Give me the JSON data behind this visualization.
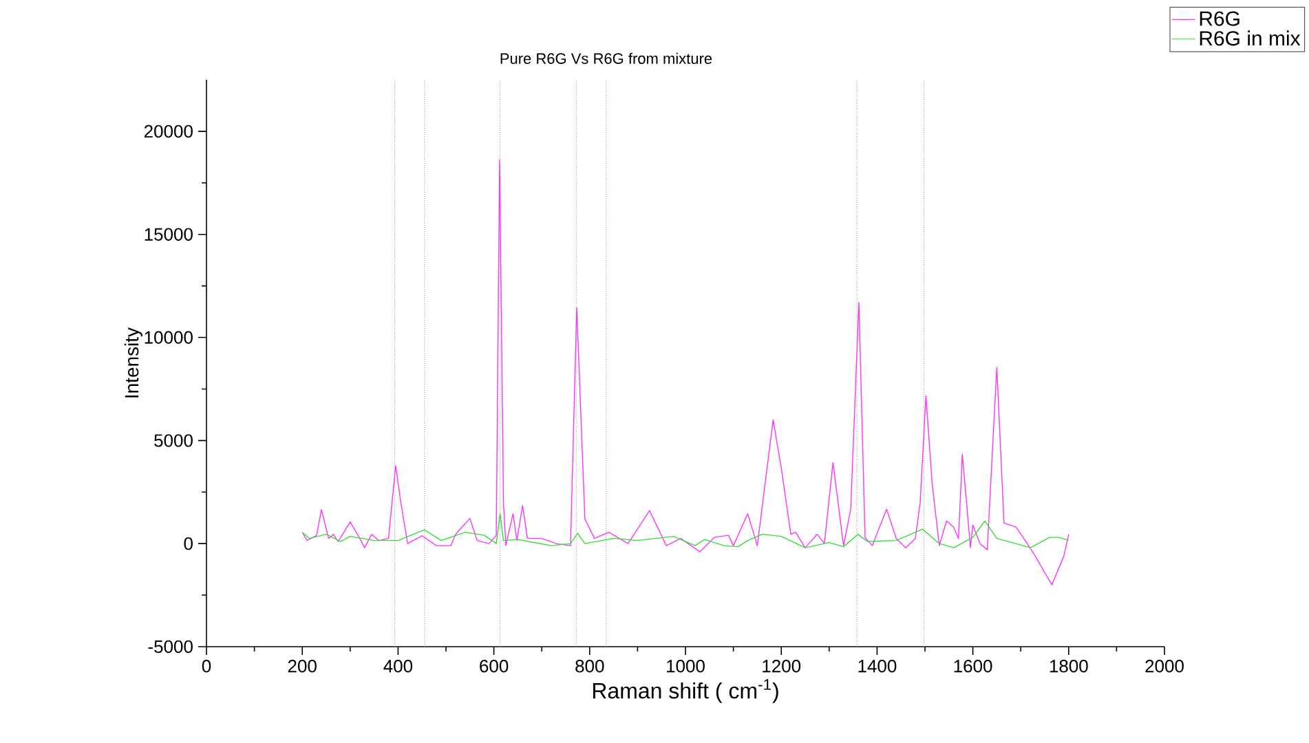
{
  "chart_data": {
    "type": "line",
    "title": "Pure R6G Vs R6G from mixture",
    "xlabel": "Raman shift  ( cm$^{-1}$)",
    "ylabel": "Intensity",
    "xlim": [
      0,
      2000
    ],
    "ylim": [
      -5000,
      22500
    ],
    "xticks": [
      0,
      200,
      400,
      600,
      800,
      1000,
      1200,
      1400,
      1600,
      1800,
      2000
    ],
    "yticks": [
      -5000,
      0,
      5000,
      10000,
      15000,
      20000
    ],
    "legend": "top right",
    "grid": false,
    "ref_lines": [
      {
        "axis": "x",
        "value": 393,
        "color": "#999999",
        "line_style": "dotted"
      },
      {
        "axis": "x",
        "value": 455,
        "color": "#999999",
        "line_style": "dotted"
      },
      {
        "axis": "x",
        "value": 613,
        "color": "#999999",
        "line_style": "dotted"
      },
      {
        "axis": "x",
        "value": 772,
        "color": "#999999",
        "line_style": "dotted"
      },
      {
        "axis": "x",
        "value": 834,
        "color": "#999999",
        "line_style": "dotted"
      },
      {
        "axis": "x",
        "value": 1358,
        "color": "#999999",
        "line_style": "dotted"
      },
      {
        "axis": "x",
        "value": 1498,
        "color": "#999999",
        "line_style": "dotted"
      }
    ],
    "series": [
      {
        "name": "R6G",
        "color": "#ff33ff",
        "x": [
          200,
          210,
          230,
          240,
          255,
          265,
          275,
          300,
          320,
          330,
          345,
          360,
          380,
          395,
          405,
          420,
          450,
          480,
          510,
          520,
          550,
          565,
          590,
          605,
          612,
          620,
          625,
          640,
          648,
          660,
          670,
          700,
          730,
          760,
          773,
          790,
          810,
          840,
          880,
          925,
          960,
          990,
          1030,
          1060,
          1090,
          1100,
          1130,
          1150,
          1183,
          1200,
          1220,
          1230,
          1250,
          1275,
          1290,
          1308,
          1330,
          1345,
          1362,
          1375,
          1390,
          1420,
          1440,
          1460,
          1480,
          1490,
          1502,
          1515,
          1530,
          1545,
          1560,
          1570,
          1578,
          1595,
          1600,
          1615,
          1630,
          1650,
          1665,
          1690,
          1705,
          1730,
          1765,
          1790,
          1800
        ],
        "values": [
          550,
          150,
          400,
          1650,
          250,
          450,
          100,
          1050,
          250,
          -200,
          450,
          150,
          250,
          3780,
          2100,
          0,
          380,
          -100,
          -100,
          450,
          1220,
          150,
          0,
          400,
          18600,
          2000,
          -100,
          1450,
          150,
          1850,
          250,
          250,
          0,
          -100,
          11450,
          1200,
          250,
          550,
          0,
          1600,
          -100,
          250,
          -400,
          300,
          400,
          -100,
          1450,
          -100,
          6000,
          3670,
          450,
          550,
          -200,
          450,
          0,
          3930,
          -100,
          1670,
          11700,
          300,
          -100,
          1670,
          250,
          -200,
          250,
          2000,
          7180,
          2900,
          -100,
          1100,
          800,
          250,
          4330,
          -200,
          900,
          0,
          -300,
          8550,
          1000,
          800,
          300,
          -600,
          -2000,
          -600,
          450
        ]
      },
      {
        "name": "R6G in mix",
        "color": "#33dd33",
        "x": [
          200,
          215,
          250,
          280,
          300,
          350,
          400,
          455,
          490,
          540,
          580,
          605,
          613,
          620,
          650,
          720,
          760,
          775,
          790,
          850,
          900,
          975,
          1020,
          1040,
          1080,
          1110,
          1130,
          1160,
          1200,
          1250,
          1300,
          1330,
          1360,
          1380,
          1440,
          1495,
          1530,
          1560,
          1600,
          1625,
          1650,
          1690,
          1720,
          1760,
          1780,
          1800
        ],
        "values": [
          550,
          250,
          450,
          100,
          350,
          150,
          150,
          670,
          150,
          550,
          400,
          0,
          1450,
          150,
          200,
          -100,
          0,
          500,
          0,
          250,
          150,
          350,
          -100,
          200,
          -100,
          -150,
          150,
          450,
          350,
          -200,
          50,
          -150,
          450,
          100,
          150,
          700,
          0,
          -200,
          300,
          1100,
          250,
          0,
          -200,
          300,
          300,
          150
        ]
      }
    ]
  }
}
